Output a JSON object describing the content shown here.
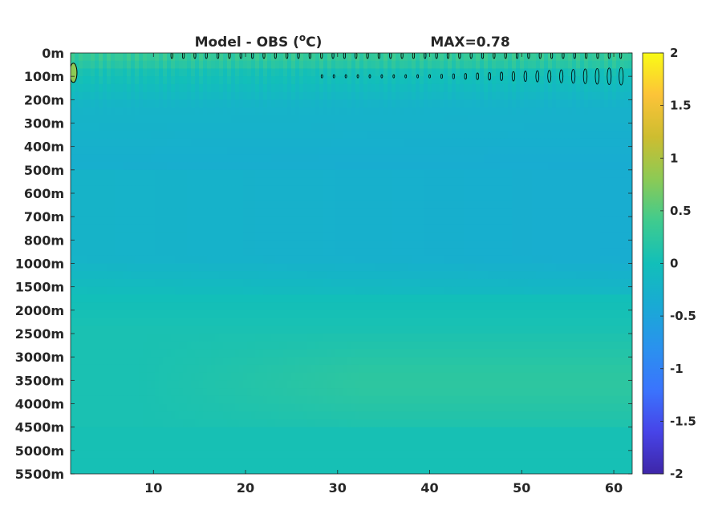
{
  "chart_data": {
    "type": "heatmap",
    "title": "Model - OBS (°C)",
    "title_prefix": "Model - OBS (",
    "title_sup": "o",
    "title_suffix": "C)",
    "max_label": "MAX=0.78",
    "xlabel": "",
    "ylabel": "",
    "xlim": [
      1,
      62
    ],
    "x_ticks": [
      10,
      20,
      30,
      40,
      50,
      60
    ],
    "x_tick_labels": [
      "10",
      "20",
      "30",
      "40",
      "50",
      "60"
    ],
    "y_tick_labels": [
      "0m",
      "100m",
      "200m",
      "300m",
      "400m",
      "500m",
      "600m",
      "700m",
      "800m",
      "1000m",
      "1500m",
      "2000m",
      "2500m",
      "3000m",
      "3500m",
      "4000m",
      "4500m",
      "5000m",
      "5500m"
    ],
    "depth_levels": [
      0,
      100,
      200,
      300,
      400,
      500,
      600,
      700,
      800,
      1000,
      1500,
      2000,
      2500,
      3000,
      3500,
      4000,
      4500,
      5000,
      5500
    ],
    "clim": [
      -2,
      2
    ],
    "colorbar_ticks": [
      2,
      1.5,
      1,
      0.5,
      0,
      -0.5,
      -1,
      -1.5,
      -2
    ],
    "colorbar_tick_labels": [
      "2",
      "1.5",
      "1",
      "0.5",
      "0",
      "-0.5",
      "-1",
      "-1.5",
      "-2"
    ],
    "colormap": "parula",
    "contour_level": 0.5,
    "colormap_stops": [
      "#3e26a8",
      "#4744e8",
      "#3a74fd",
      "#2a92ee",
      "#19aad4",
      "#12bfb9",
      "#3fcb8f",
      "#8cca55",
      "#cdbd30",
      "#fcc338",
      "#f9fb15"
    ],
    "grid": false
  }
}
